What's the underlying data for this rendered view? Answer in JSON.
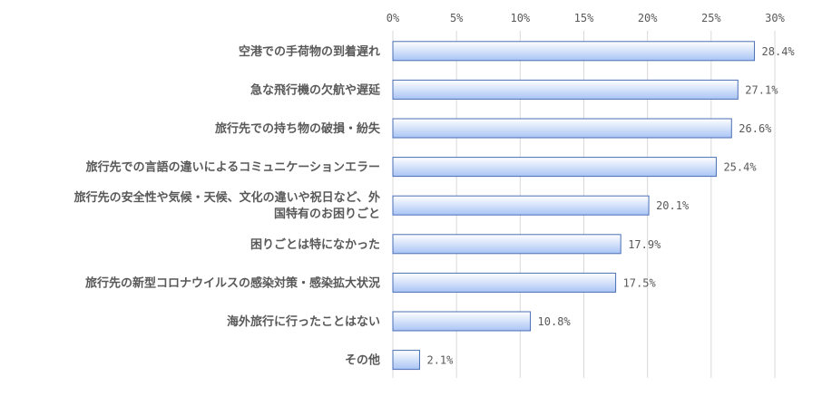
{
  "chart_data": {
    "type": "bar",
    "orientation": "horizontal",
    "categories": [
      [
        "空港での手荷物の到着遅れ"
      ],
      [
        "急な飛行機の欠航や遅延"
      ],
      [
        "旅行先での持ち物の破損・紛失"
      ],
      [
        "旅行先での言語の違いによるコミュニケーションエラー"
      ],
      [
        "旅行先の安全性や気候・天候、文化の違いや祝日など、外",
        "国特有のお困りごと"
      ],
      [
        "困りごとは特になかった"
      ],
      [
        "旅行先の新型コロナウイルスの感染対策・感染拡大状況"
      ],
      [
        "海外旅行に行ったことはない"
      ],
      [
        "その他"
      ]
    ],
    "values": [
      28.4,
      27.1,
      26.6,
      25.4,
      20.1,
      17.9,
      17.5,
      10.8,
      2.1
    ],
    "value_labels": [
      "28.4%",
      "27.1%",
      "26.6%",
      "25.4%",
      "20.1%",
      "17.9%",
      "17.5%",
      "10.8%",
      "2.1%"
    ],
    "x_ticks": [
      "0%",
      "5%",
      "10%",
      "15%",
      "20%",
      "25%",
      "30%"
    ],
    "xlim": [
      0,
      30
    ],
    "axis_position": "top",
    "grid": true,
    "bar_color_start": "#ffffff",
    "bar_color_end": "#a9c4f5",
    "bar_border_color": "#4a6fb5"
  }
}
